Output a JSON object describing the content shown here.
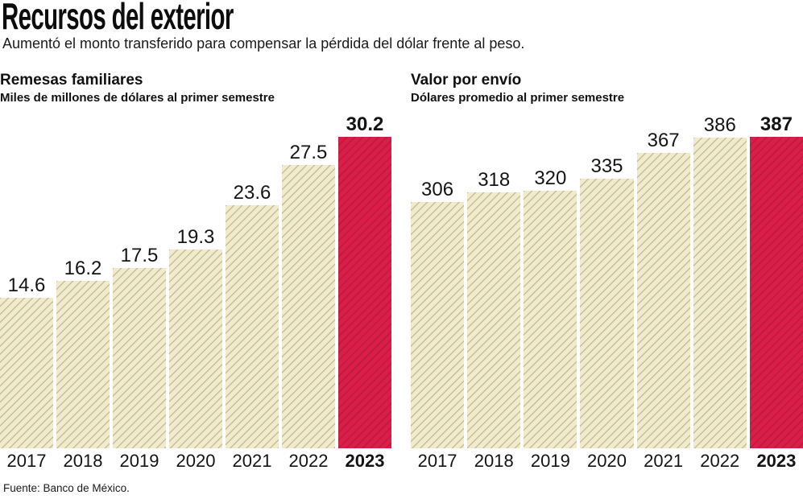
{
  "header": {
    "title": "Recursos del exterior",
    "subtitle": "Aumentó el monto transferido para compensar la pérdida del dólar frente al peso."
  },
  "source": "Fuente: Banco de México.",
  "colors": {
    "bar_fill": "#F1EBCD",
    "bar_hatch": "#C8BE93",
    "highlight_fill": "#DA1E47",
    "highlight_hatch": "#BC1A3E",
    "text": "#141414"
  },
  "chart_data": [
    {
      "type": "bar",
      "title": "Remesas familiares",
      "subtitle": "Miles de millones de dólares al primer semestre",
      "categories": [
        "2017",
        "2018",
        "2019",
        "2020",
        "2021",
        "2022",
        "2023"
      ],
      "values": [
        14.6,
        16.2,
        17.5,
        19.3,
        23.6,
        27.5,
        30.2
      ],
      "highlight_index": 6,
      "highlight_category": "2023",
      "ylim": [
        0,
        30.2
      ],
      "grid": false,
      "legend": "none",
      "value_labels": "above-bars"
    },
    {
      "type": "bar",
      "title": "Valor por envío",
      "subtitle": "Dólares promedio al primer semestre",
      "categories": [
        "2017",
        "2018",
        "2019",
        "2020",
        "2021",
        "2022",
        "2023"
      ],
      "values": [
        306,
        318,
        320,
        335,
        367,
        386,
        387
      ],
      "highlight_index": 6,
      "highlight_category": "2023",
      "ylim": [
        0,
        387
      ],
      "grid": false,
      "legend": "none",
      "value_labels": "above-bars"
    }
  ]
}
